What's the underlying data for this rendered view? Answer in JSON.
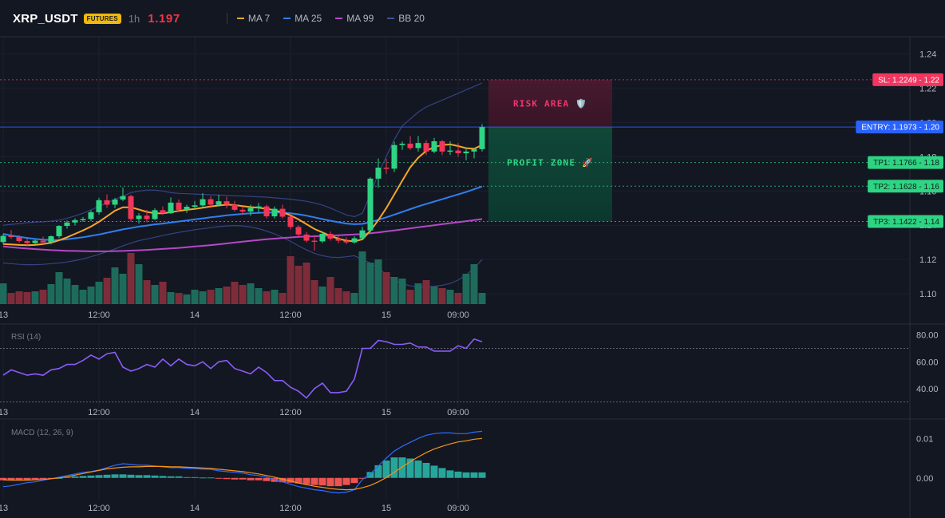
{
  "header": {
    "symbol": "XRP_USDT",
    "badge": "FUTURES",
    "timeframe": "1h",
    "price": "1.197",
    "legend": [
      {
        "label": "MA 7",
        "color": "#f7a428"
      },
      {
        "label": "MA 25",
        "color": "#2f80ed"
      },
      {
        "label": "MA 99",
        "color": "#b548c6"
      },
      {
        "label": "BB 20",
        "color": "#3f4f9a"
      }
    ]
  },
  "colors": {
    "up": "#2ed483",
    "down": "#f23656",
    "vol_up": "#1e6b5c",
    "vol_down": "#7f2c3a",
    "entry": "#2962ff",
    "sl": "#f23660",
    "tp": "#2ed483",
    "rsi": "#8b5cf6",
    "macd": "#2f6bff",
    "signal": "#f7931a",
    "hist_pos": "#26a69a",
    "hist_neg": "#ef5350"
  },
  "x_axis": {
    "labels": [
      "13",
      "12:00",
      "14",
      "12:00",
      "15",
      "09:00"
    ],
    "label_candle_index": [
      0,
      12,
      24,
      36,
      48,
      57
    ]
  },
  "main_axis": {
    "ticks": [
      "1.24",
      "1.22",
      "1.20",
      "1.18",
      "1.16",
      "1.14",
      "1.12",
      "1.10"
    ],
    "tick_values": [
      1.24,
      1.22,
      1.2,
      1.18,
      1.16,
      1.14,
      1.12,
      1.1
    ],
    "ylim": [
      1.094,
      1.25
    ]
  },
  "levels": {
    "sl": {
      "label": "SL: 1.2249 - 1.22",
      "value": 1.2249
    },
    "entry": {
      "label": "ENTRY: 1.1973 - 1.20",
      "value": 1.1973
    },
    "tp": [
      {
        "label": "TP1: 1.1766 - 1.18",
        "value": 1.1766
      },
      {
        "label": "TP2: 1.1628 - 1.16",
        "value": 1.1628
      },
      {
        "label": "TP3: 1.1422 - 1.14",
        "value": 1.1422
      }
    ]
  },
  "zones": {
    "risk": {
      "label": "RISK AREA 🛡️"
    },
    "profit": {
      "label": "PROFIT ZONE 🚀"
    }
  },
  "rsi": {
    "label": "RSI (14)",
    "ticks": [
      "80.00",
      "60.00",
      "40.00"
    ],
    "tick_values": [
      80,
      60,
      40
    ],
    "ylim": [
      25,
      87
    ],
    "overbought": 70,
    "oversold": 30,
    "values": [
      50,
      54,
      52,
      50,
      51,
      50,
      54,
      55,
      58,
      58,
      61,
      65,
      62,
      66,
      67,
      56,
      53,
      55,
      58,
      56,
      62,
      57,
      62,
      58,
      57,
      60,
      55,
      60,
      61,
      55,
      53,
      51,
      56,
      52,
      46,
      46,
      41,
      38,
      33,
      40,
      44,
      37,
      37,
      38,
      47,
      70,
      70,
      76,
      75,
      73,
      73,
      74,
      71,
      71,
      68,
      68,
      68,
      72,
      70,
      77,
      75
    ]
  },
  "macd": {
    "label": "MACD (12, 26, 9)",
    "ticks": [
      "0.01",
      "0.00"
    ],
    "tick_values": [
      0.01,
      0.0
    ],
    "ylim": [
      -0.0053,
      0.0143
    ],
    "line": [
      -0.0022,
      -0.002,
      -0.0016,
      -0.0012,
      -0.001,
      -0.0006,
      -0.0002,
      0.0002,
      0.0006,
      0.001,
      0.0014,
      0.0016,
      0.002,
      0.0026,
      0.0032,
      0.0036,
      0.0034,
      0.0032,
      0.0032,
      0.003,
      0.0028,
      0.0026,
      0.0026,
      0.0024,
      0.0024,
      0.0022,
      0.0022,
      0.0018,
      0.0016,
      0.0014,
      0.0012,
      0.0008,
      0.0006,
      0.0002,
      -0.0004,
      -0.001,
      -0.0016,
      -0.0022,
      -0.0026,
      -0.003,
      -0.0032,
      -0.0036,
      -0.0038,
      -0.0036,
      -0.003,
      -0.0004,
      0.001,
      0.003,
      0.005,
      0.0068,
      0.008,
      0.009,
      0.01,
      0.0108,
      0.0112,
      0.0114,
      0.0114,
      0.0112,
      0.0112,
      0.0116,
      0.0118
    ],
    "signal": [
      -0.0005,
      -0.0006,
      -0.0006,
      -0.0006,
      -0.0005,
      -0.0004,
      -0.0002,
      0.0,
      0.0003,
      0.0007,
      0.0011,
      0.0015,
      0.0019,
      0.0023,
      0.0025,
      0.0027,
      0.0028,
      0.0028,
      0.0029,
      0.0029,
      0.0029,
      0.0028,
      0.0028,
      0.0027,
      0.0026,
      0.0025,
      0.0024,
      0.0022,
      0.002,
      0.0018,
      0.0016,
      0.0013,
      0.001,
      0.0006,
      0.0002,
      -0.0003,
      -0.0008,
      -0.0013,
      -0.0017,
      -0.0021,
      -0.0024,
      -0.0027,
      -0.0029,
      -0.003,
      -0.0029,
      -0.0025,
      -0.0019,
      -0.001,
      0.0001,
      0.0014,
      0.0028,
      0.0041,
      0.0053,
      0.0064,
      0.0073,
      0.008,
      0.0086,
      0.0091,
      0.0094,
      0.0098,
      0.01
    ],
    "hist": [
      -0.0006,
      -0.0006,
      -0.0006,
      -0.0006,
      -0.0004,
      -0.0003,
      -0.0002,
      0.0,
      0.0002,
      0.0004,
      0.0005,
      0.0006,
      0.0007,
      0.0008,
      0.0009,
      0.0009,
      0.0008,
      0.0007,
      0.0007,
      0.0006,
      0.0005,
      0.0004,
      0.0004,
      0.0002,
      0.0002,
      0.0001,
      0.0001,
      -0.0002,
      -0.0003,
      -0.0004,
      -0.0004,
      -0.0006,
      -0.0006,
      -0.0008,
      -0.001,
      -0.0011,
      -0.0012,
      -0.0014,
      -0.0016,
      -0.0018,
      -0.0019,
      -0.0021,
      -0.0021,
      -0.0018,
      -0.0013,
      -0.0001,
      0.0015,
      0.0032,
      0.0044,
      0.0052,
      0.0052,
      0.0049,
      0.0044,
      0.0038,
      0.0031,
      0.0025,
      0.0019,
      0.0016,
      0.0014,
      0.0014,
      0.0014
    ]
  },
  "chart_data": {
    "type": "candlestick",
    "x_labels": [
      "13",
      "12:00",
      "14",
      "12:00",
      "15",
      "09:00"
    ],
    "ohlc": [
      [
        1.1302,
        1.135,
        1.129,
        1.1338
      ],
      [
        1.1338,
        1.1372,
        1.132,
        1.1332
      ],
      [
        1.1332,
        1.1342,
        1.1298,
        1.1308
      ],
      [
        1.1308,
        1.1322,
        1.128,
        1.1296
      ],
      [
        1.1296,
        1.1318,
        1.1286,
        1.131
      ],
      [
        1.131,
        1.1334,
        1.129,
        1.13
      ],
      [
        1.13,
        1.134,
        1.129,
        1.1336
      ],
      [
        1.1336,
        1.14,
        1.1324,
        1.1396
      ],
      [
        1.1396,
        1.1428,
        1.138,
        1.1416
      ],
      [
        1.1416,
        1.144,
        1.1398,
        1.143
      ],
      [
        1.143,
        1.1448,
        1.142,
        1.1436
      ],
      [
        1.1436,
        1.1488,
        1.1424,
        1.1476
      ],
      [
        1.1476,
        1.156,
        1.1462,
        1.1546
      ],
      [
        1.1546,
        1.158,
        1.1502,
        1.152
      ],
      [
        1.152,
        1.156,
        1.15,
        1.155
      ],
      [
        1.155,
        1.162,
        1.154,
        1.157
      ],
      [
        1.157,
        1.1578,
        1.142,
        1.1436
      ],
      [
        1.1436,
        1.147,
        1.141,
        1.1456
      ],
      [
        1.1456,
        1.149,
        1.1418,
        1.1436
      ],
      [
        1.1436,
        1.15,
        1.143,
        1.1488
      ],
      [
        1.1488,
        1.151,
        1.146,
        1.147
      ],
      [
        1.147,
        1.1562,
        1.1466,
        1.1532
      ],
      [
        1.1532,
        1.155,
        1.1478,
        1.149
      ],
      [
        1.149,
        1.152,
        1.1472,
        1.1508
      ],
      [
        1.1508,
        1.1542,
        1.149,
        1.1516
      ],
      [
        1.1516,
        1.1588,
        1.15,
        1.1552
      ],
      [
        1.1552,
        1.157,
        1.15,
        1.152
      ],
      [
        1.152,
        1.1578,
        1.151,
        1.154
      ],
      [
        1.154,
        1.1566,
        1.15,
        1.152
      ],
      [
        1.152,
        1.1542,
        1.148,
        1.149
      ],
      [
        1.149,
        1.151,
        1.146,
        1.148
      ],
      [
        1.148,
        1.152,
        1.1456,
        1.15
      ],
      [
        1.15,
        1.153,
        1.1474,
        1.151
      ],
      [
        1.151,
        1.152,
        1.144,
        1.1452
      ],
      [
        1.1452,
        1.151,
        1.144,
        1.1496
      ],
      [
        1.1496,
        1.152,
        1.144,
        1.145
      ],
      [
        1.145,
        1.146,
        1.1376,
        1.139
      ],
      [
        1.139,
        1.14,
        1.133,
        1.1346
      ],
      [
        1.1346,
        1.136,
        1.13,
        1.131
      ],
      [
        1.131,
        1.1342,
        1.1252,
        1.1306
      ],
      [
        1.1306,
        1.136,
        1.1296,
        1.135
      ],
      [
        1.135,
        1.1364,
        1.131,
        1.1322
      ],
      [
        1.1322,
        1.134,
        1.1296,
        1.131
      ],
      [
        1.131,
        1.133,
        1.129,
        1.13
      ],
      [
        1.13,
        1.1336,
        1.1292,
        1.1324
      ],
      [
        1.1324,
        1.139,
        1.1318,
        1.137
      ],
      [
        1.137,
        1.168,
        1.136,
        1.1672
      ],
      [
        1.1672,
        1.179,
        1.162,
        1.1736
      ],
      [
        1.1736,
        1.1788,
        1.17,
        1.173
      ],
      [
        1.173,
        1.1888,
        1.171,
        1.1868
      ],
      [
        1.1868,
        1.1888,
        1.184,
        1.1876
      ],
      [
        1.1876,
        1.192,
        1.184,
        1.185
      ],
      [
        1.185,
        1.192,
        1.183,
        1.188
      ],
      [
        1.188,
        1.1896,
        1.181,
        1.183
      ],
      [
        1.183,
        1.191,
        1.182,
        1.189
      ],
      [
        1.189,
        1.1898,
        1.181,
        1.183
      ],
      [
        1.183,
        1.189,
        1.181,
        1.1836
      ],
      [
        1.1836,
        1.188,
        1.18,
        1.182
      ],
      [
        1.182,
        1.185,
        1.178,
        1.183
      ],
      [
        1.183,
        1.185,
        1.179,
        1.1844
      ],
      [
        1.1844,
        1.199,
        1.183,
        1.1973
      ]
    ],
    "volume": [
      26,
      14,
      16,
      15,
      16,
      18,
      25,
      40,
      32,
      24,
      18,
      22,
      28,
      33,
      46,
      38,
      64,
      50,
      30,
      24,
      28,
      15,
      14,
      12,
      18,
      16,
      18,
      20,
      22,
      28,
      24,
      26,
      20,
      16,
      18,
      14,
      60,
      48,
      52,
      30,
      22,
      34,
      20,
      16,
      14,
      66,
      52,
      56,
      40,
      34,
      32,
      18,
      26,
      30,
      22,
      20,
      18,
      14,
      38,
      50,
      14
    ],
    "ma7": [
      1.129,
      1.1288,
      1.1285,
      1.1283,
      1.1285,
      1.129,
      1.1298,
      1.1312,
      1.133,
      1.135,
      1.137,
      1.1392,
      1.142,
      1.1452,
      1.1485,
      1.1505,
      1.1505,
      1.1492,
      1.1478,
      1.147,
      1.147,
      1.1476,
      1.1484,
      1.149,
      1.1495,
      1.1502,
      1.151,
      1.1515,
      1.152,
      1.1518,
      1.1512,
      1.1506,
      1.1502,
      1.1496,
      1.1488,
      1.1476,
      1.1458,
      1.1434,
      1.1406,
      1.1378,
      1.1358,
      1.1338,
      1.1322,
      1.131,
      1.1306,
      1.1318,
      1.1368,
      1.143,
      1.15,
      1.158,
      1.166,
      1.1738,
      1.1794,
      1.1834,
      1.1856,
      1.1868,
      1.1872,
      1.1862,
      1.185,
      1.1846,
      1.1868
    ],
    "ma25": [
      1.135,
      1.134,
      1.1333,
      1.1326,
      1.132,
      1.1316,
      1.1314,
      1.1314,
      1.1318,
      1.1324,
      1.133,
      1.1338,
      1.1346,
      1.1356,
      1.1366,
      1.1376,
      1.1384,
      1.1392,
      1.1398,
      1.1405,
      1.141,
      1.1416,
      1.1422,
      1.1428,
      1.1434,
      1.144,
      1.1446,
      1.1452,
      1.1458,
      1.1462,
      1.1466,
      1.147,
      1.1472,
      1.1474,
      1.1475,
      1.1474,
      1.147,
      1.1464,
      1.1456,
      1.1446,
      1.1436,
      1.1426,
      1.1418,
      1.141,
      1.1406,
      1.1408,
      1.1418,
      1.1432,
      1.1446,
      1.1462,
      1.1478,
      1.1494,
      1.151,
      1.1524,
      1.1538,
      1.1552,
      1.1566,
      1.158,
      1.1594,
      1.161,
      1.1626
    ],
    "ma99": [
      1.1276,
      1.1272,
      1.1268,
      1.1264,
      1.1261,
      1.1258,
      1.1255,
      1.1253,
      1.1251,
      1.125,
      1.1249,
      1.1248,
      1.1248,
      1.1248,
      1.1249,
      1.125,
      1.1252,
      1.1254,
      1.1256,
      1.1259,
      1.1262,
      1.1265,
      1.1268,
      1.1272,
      1.1276,
      1.128,
      1.1284,
      1.1289,
      1.1294,
      1.1299,
      1.1304,
      1.1309,
      1.1314,
      1.1318,
      1.1322,
      1.1326,
      1.1329,
      1.1332,
      1.1334,
      1.1336,
      1.1338,
      1.134,
      1.1342,
      1.1344,
      1.1346,
      1.1349,
      1.1353,
      1.1358,
      1.1364,
      1.137,
      1.1376,
      1.1382,
      1.1388,
      1.1394,
      1.14,
      1.1406,
      1.1412,
      1.1418,
      1.1424,
      1.143,
      1.1436
    ],
    "bb_upper": [
      1.14,
      1.1405,
      1.141,
      1.1415,
      1.1418,
      1.142,
      1.1424,
      1.143,
      1.144,
      1.1455,
      1.147,
      1.149,
      1.151,
      1.153,
      1.155,
      1.157,
      1.159,
      1.16,
      1.1605,
      1.1605,
      1.16,
      1.159,
      1.1586,
      1.1584,
      1.1582,
      1.158,
      1.1578,
      1.1576,
      1.1574,
      1.1572,
      1.157,
      1.1568,
      1.1566,
      1.1564,
      1.156,
      1.1556,
      1.1552,
      1.1546,
      1.154,
      1.153,
      1.1518,
      1.15,
      1.148,
      1.146,
      1.145,
      1.147,
      1.158,
      1.17,
      1.18,
      1.19,
      1.198,
      1.202,
      1.206,
      1.209,
      1.211,
      1.213,
      1.215,
      1.217,
      1.219,
      1.221,
      1.223
    ],
    "bb_lower": [
      1.118,
      1.1176,
      1.1172,
      1.117,
      1.117,
      1.1172,
      1.1176,
      1.118,
      1.1186,
      1.1194,
      1.1204,
      1.1216,
      1.123,
      1.1246,
      1.1262,
      1.128,
      1.1296,
      1.131,
      1.132,
      1.133,
      1.134,
      1.135,
      1.1358,
      1.1366,
      1.1374,
      1.138,
      1.1386,
      1.1392,
      1.1396,
      1.1398,
      1.1396,
      1.139,
      1.138,
      1.1366,
      1.135,
      1.133,
      1.1306,
      1.128,
      1.1256,
      1.1236,
      1.1222,
      1.1214,
      1.1212,
      1.1216,
      1.1222,
      1.12,
      1.118,
      1.115,
      1.111,
      1.108,
      1.106,
      1.1046,
      1.104,
      1.104,
      1.1044,
      1.105,
      1.106,
      1.108,
      1.111,
      1.115,
      1.12
    ]
  }
}
